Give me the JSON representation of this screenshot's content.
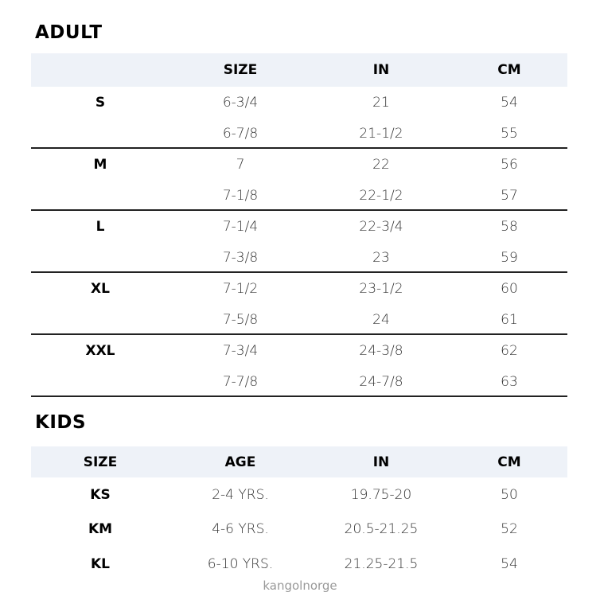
{
  "adult": {
    "title": "ADULT",
    "headers": [
      "",
      "SIZE",
      "IN",
      "CM"
    ],
    "groups": [
      {
        "label": "S",
        "rows": [
          [
            "6-3/4",
            "21",
            "54"
          ],
          [
            "6-7/8",
            "21-1/2",
            "55"
          ]
        ]
      },
      {
        "label": "M",
        "rows": [
          [
            "7",
            "22",
            "56"
          ],
          [
            "7-1/8",
            "22-1/2",
            "57"
          ]
        ]
      },
      {
        "label": "L",
        "rows": [
          [
            "7-1/4",
            "22-3/4",
            "58"
          ],
          [
            "7-3/8",
            "23",
            "59"
          ]
        ]
      },
      {
        "label": "XL",
        "rows": [
          [
            "7-1/2",
            "23-1/2",
            "60"
          ],
          [
            "7-5/8",
            "24",
            "61"
          ]
        ]
      },
      {
        "label": "XXL",
        "rows": [
          [
            "7-3/4",
            "24-3/8",
            "62"
          ],
          [
            "7-7/8",
            "24-7/8",
            "63"
          ]
        ]
      }
    ]
  },
  "kids": {
    "title": "KIDS",
    "headers": [
      "SIZE",
      "AGE",
      "IN",
      "CM"
    ],
    "rows": [
      [
        "KS",
        "2-4 YRS.",
        "19.75-20",
        "50"
      ],
      [
        "KM",
        "4-6 YRS.",
        "20.5-21.25",
        "52"
      ],
      [
        "KL",
        "6-10 YRS.",
        "21.25-21.5",
        "54"
      ]
    ]
  },
  "watermark": "kangolnorge"
}
